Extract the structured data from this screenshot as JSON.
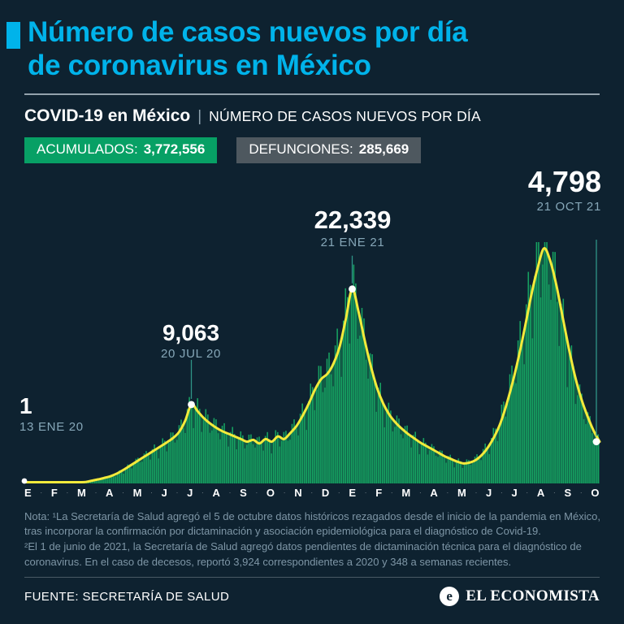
{
  "header": {
    "title_line1": "Número de casos nuevos por día",
    "title_line2": "de coronavirus en México"
  },
  "subheader": {
    "bold": "COVID-19 en México",
    "separator": "|",
    "rest": "NÚMERO DE CASOS NUEVOS POR DÍA"
  },
  "badges": {
    "accumulated": {
      "label": "ACUMULADOS:",
      "value": "3,772,556",
      "bg": "#07a065"
    },
    "deaths": {
      "label": "DEFUNCIONES:",
      "value": "285,669",
      "bg": "#4e585f"
    }
  },
  "chart_data": {
    "type": "area",
    "title": "COVID-19 en México | Número de casos nuevos por día",
    "xlabel": "",
    "ylabel": "Casos nuevos por día",
    "ylim": [
      0,
      28000
    ],
    "grid": false,
    "legend": "none",
    "x_tick_labels": [
      "E",
      "F",
      "M",
      "A",
      "M",
      "J",
      "J",
      "A",
      "S",
      "O",
      "N",
      "D",
      "E",
      "F",
      "M",
      "A",
      "M",
      "J",
      "J",
      "A",
      "S",
      "O"
    ],
    "x_unit": "semanas del 13 ENE 20 al 21 OCT 21",
    "values": [
      1,
      1,
      1,
      2,
      2,
      3,
      5,
      10,
      30,
      80,
      180,
      330,
      480,
      650,
      850,
      1150,
      1550,
      2000,
      2450,
      2900,
      3350,
      3800,
      4250,
      4700,
      5200,
      5900,
      7200,
      9063,
      8300,
      7500,
      6900,
      6400,
      6000,
      5700,
      5400,
      5100,
      4800,
      5000,
      4600,
      5100,
      4800,
      5400,
      5100,
      5800,
      6600,
      7800,
      9200,
      10800,
      12000,
      12600,
      13800,
      15800,
      19000,
      22339,
      19800,
      16500,
      13500,
      11000,
      9200,
      7900,
      7000,
      6300,
      5700,
      5200,
      4700,
      4300,
      3900,
      3500,
      3100,
      2800,
      2500,
      2300,
      2400,
      2700,
      3300,
      4200,
      5400,
      7000,
      9200,
      11800,
      14800,
      18200,
      21800,
      24800,
      27000,
      25600,
      22800,
      19200,
      15600,
      12400,
      9800,
      7800,
      6100,
      4798
    ],
    "annotated_points": [
      {
        "index": 0,
        "value": 1,
        "label": "1",
        "date": "13 ENE 20",
        "connector": "dot"
      },
      {
        "index": 27,
        "value": 9063,
        "label": "9,063",
        "date": "20 JUL 20",
        "connector": "up",
        "line_len": 48
      },
      {
        "index": 53,
        "value": 22339,
        "label": "22,339",
        "date": "21 ENE 21",
        "connector": "up",
        "line_len": 34
      },
      {
        "index": 93,
        "value": 4798,
        "label": "4,798",
        "date": "21 OCT 21",
        "connector": "from_top"
      }
    ],
    "colors": {
      "area": "#16a161",
      "line": "#f3ea3b",
      "marker": "#ffffff",
      "connector": "#2f9488",
      "background": "#0e2230",
      "accent_cyan": "#00b3ea"
    }
  },
  "note": {
    "line1": "Nota: ¹La Secretaría de Salud agregó el 5 de octubre datos históricos rezagados desde el inicio de la pandemia en México, tras incorporar la confirmación por dictaminación y asociación epidemiológica para el diagnóstico de Covid-19.",
    "line2": "²El 1 de junio de 2021, la Secretaría de Salud agregó datos pendientes de dictaminación técnica para el diagnóstico de coronavirus. En el caso de decesos, reportó 3,924 correspondientes a 2020 y 348 a semanas recientes."
  },
  "footer": {
    "source": "FUENTE: SECRETARÍA DE SALUD",
    "brand": "EL ECONOMISTA",
    "logo_letter": "e"
  }
}
